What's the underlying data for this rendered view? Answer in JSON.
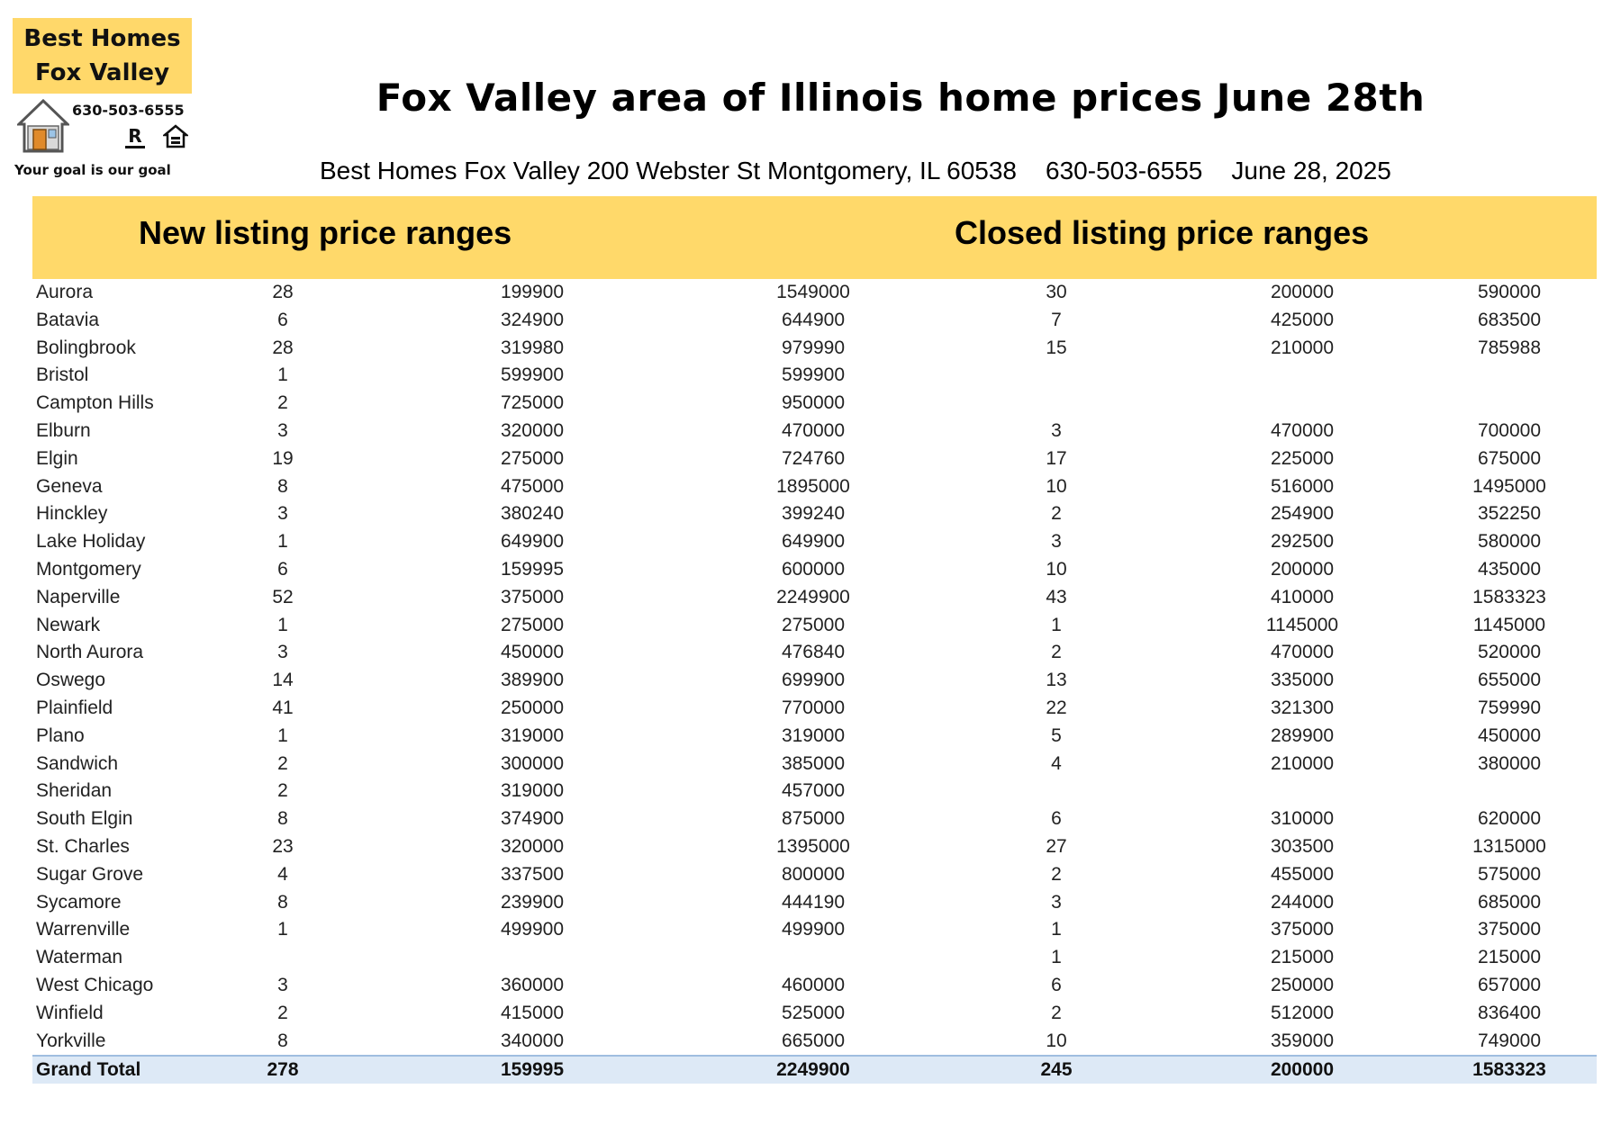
{
  "logo": {
    "line1": "Best Homes",
    "line2": "Fox Valley",
    "phone": "630-503-6555",
    "realtor_mark": "R",
    "tagline": "Your goal is our goal",
    "icons": [
      "house-icon",
      "realtor-icon",
      "equal-housing-icon"
    ]
  },
  "title": "Fox Valley area of Illinois home prices June 28th",
  "subtitle": {
    "address": "Best Homes Fox Valley 200 Webster St Montgomery, IL 60538",
    "phone": "630-503-6555",
    "date": "June 28, 2025"
  },
  "headers": {
    "new_listing": "New listing price ranges",
    "closed_listing": "Closed listing price ranges"
  },
  "colors": {
    "header_band": "#ffd96a",
    "logo_box": "#ffd86a",
    "total_row": "#dde9f6"
  },
  "rows": [
    {
      "city": "Aurora",
      "new_count": "28",
      "new_min": "199900",
      "new_max": "1549000",
      "closed_count": "30",
      "closed_min": "200000",
      "closed_max": "590000"
    },
    {
      "city": "Batavia",
      "new_count": "6",
      "new_min": "324900",
      "new_max": "644900",
      "closed_count": "7",
      "closed_min": "425000",
      "closed_max": "683500"
    },
    {
      "city": "Bolingbrook",
      "new_count": "28",
      "new_min": "319980",
      "new_max": "979990",
      "closed_count": "15",
      "closed_min": "210000",
      "closed_max": "785988"
    },
    {
      "city": "Bristol",
      "new_count": "1",
      "new_min": "599900",
      "new_max": "599900",
      "closed_count": "",
      "closed_min": "",
      "closed_max": ""
    },
    {
      "city": "Campton Hills",
      "new_count": "2",
      "new_min": "725000",
      "new_max": "950000",
      "closed_count": "",
      "closed_min": "",
      "closed_max": ""
    },
    {
      "city": "Elburn",
      "new_count": "3",
      "new_min": "320000",
      "new_max": "470000",
      "closed_count": "3",
      "closed_min": "470000",
      "closed_max": "700000"
    },
    {
      "city": "Elgin",
      "new_count": "19",
      "new_min": "275000",
      "new_max": "724760",
      "closed_count": "17",
      "closed_min": "225000",
      "closed_max": "675000"
    },
    {
      "city": "Geneva",
      "new_count": "8",
      "new_min": "475000",
      "new_max": "1895000",
      "closed_count": "10",
      "closed_min": "516000",
      "closed_max": "1495000"
    },
    {
      "city": "Hinckley",
      "new_count": "3",
      "new_min": "380240",
      "new_max": "399240",
      "closed_count": "2",
      "closed_min": "254900",
      "closed_max": "352250"
    },
    {
      "city": "Lake Holiday",
      "new_count": "1",
      "new_min": "649900",
      "new_max": "649900",
      "closed_count": "3",
      "closed_min": "292500",
      "closed_max": "580000"
    },
    {
      "city": "Montgomery",
      "new_count": "6",
      "new_min": "159995",
      "new_max": "600000",
      "closed_count": "10",
      "closed_min": "200000",
      "closed_max": "435000"
    },
    {
      "city": "Naperville",
      "new_count": "52",
      "new_min": "375000",
      "new_max": "2249900",
      "closed_count": "43",
      "closed_min": "410000",
      "closed_max": "1583323"
    },
    {
      "city": "Newark",
      "new_count": "1",
      "new_min": "275000",
      "new_max": "275000",
      "closed_count": "1",
      "closed_min": "1145000",
      "closed_max": "1145000"
    },
    {
      "city": "North Aurora",
      "new_count": "3",
      "new_min": "450000",
      "new_max": "476840",
      "closed_count": "2",
      "closed_min": "470000",
      "closed_max": "520000"
    },
    {
      "city": "Oswego",
      "new_count": "14",
      "new_min": "389900",
      "new_max": "699900",
      "closed_count": "13",
      "closed_min": "335000",
      "closed_max": "655000"
    },
    {
      "city": "Plainfield",
      "new_count": "41",
      "new_min": "250000",
      "new_max": "770000",
      "closed_count": "22",
      "closed_min": "321300",
      "closed_max": "759990"
    },
    {
      "city": "Plano",
      "new_count": "1",
      "new_min": "319000",
      "new_max": "319000",
      "closed_count": "5",
      "closed_min": "289900",
      "closed_max": "450000"
    },
    {
      "city": "Sandwich",
      "new_count": "2",
      "new_min": "300000",
      "new_max": "385000",
      "closed_count": "4",
      "closed_min": "210000",
      "closed_max": "380000"
    },
    {
      "city": "Sheridan",
      "new_count": "2",
      "new_min": "319000",
      "new_max": "457000",
      "closed_count": "",
      "closed_min": "",
      "closed_max": ""
    },
    {
      "city": "South Elgin",
      "new_count": "8",
      "new_min": "374900",
      "new_max": "875000",
      "closed_count": "6",
      "closed_min": "310000",
      "closed_max": "620000"
    },
    {
      "city": "St. Charles",
      "new_count": "23",
      "new_min": "320000",
      "new_max": "1395000",
      "closed_count": "27",
      "closed_min": "303500",
      "closed_max": "1315000"
    },
    {
      "city": "Sugar Grove",
      "new_count": "4",
      "new_min": "337500",
      "new_max": "800000",
      "closed_count": "2",
      "closed_min": "455000",
      "closed_max": "575000"
    },
    {
      "city": "Sycamore",
      "new_count": "8",
      "new_min": "239900",
      "new_max": "444190",
      "closed_count": "3",
      "closed_min": "244000",
      "closed_max": "685000"
    },
    {
      "city": "Warrenville",
      "new_count": "1",
      "new_min": "499900",
      "new_max": "499900",
      "closed_count": "1",
      "closed_min": "375000",
      "closed_max": "375000"
    },
    {
      "city": "Waterman",
      "new_count": "",
      "new_min": "",
      "new_max": "",
      "closed_count": "1",
      "closed_min": "215000",
      "closed_max": "215000"
    },
    {
      "city": "West Chicago",
      "new_count": "3",
      "new_min": "360000",
      "new_max": "460000",
      "closed_count": "6",
      "closed_min": "250000",
      "closed_max": "657000"
    },
    {
      "city": "Winfield",
      "new_count": "2",
      "new_min": "415000",
      "new_max": "525000",
      "closed_count": "2",
      "closed_min": "512000",
      "closed_max": "836400"
    },
    {
      "city": "Yorkville",
      "new_count": "8",
      "new_min": "340000",
      "new_max": "665000",
      "closed_count": "10",
      "closed_min": "359000",
      "closed_max": "749000"
    }
  ],
  "total": {
    "city": "Grand Total",
    "new_count": "278",
    "new_min": "159995",
    "new_max": "2249900",
    "closed_count": "245",
    "closed_min": "200000",
    "closed_max": "1583323"
  }
}
